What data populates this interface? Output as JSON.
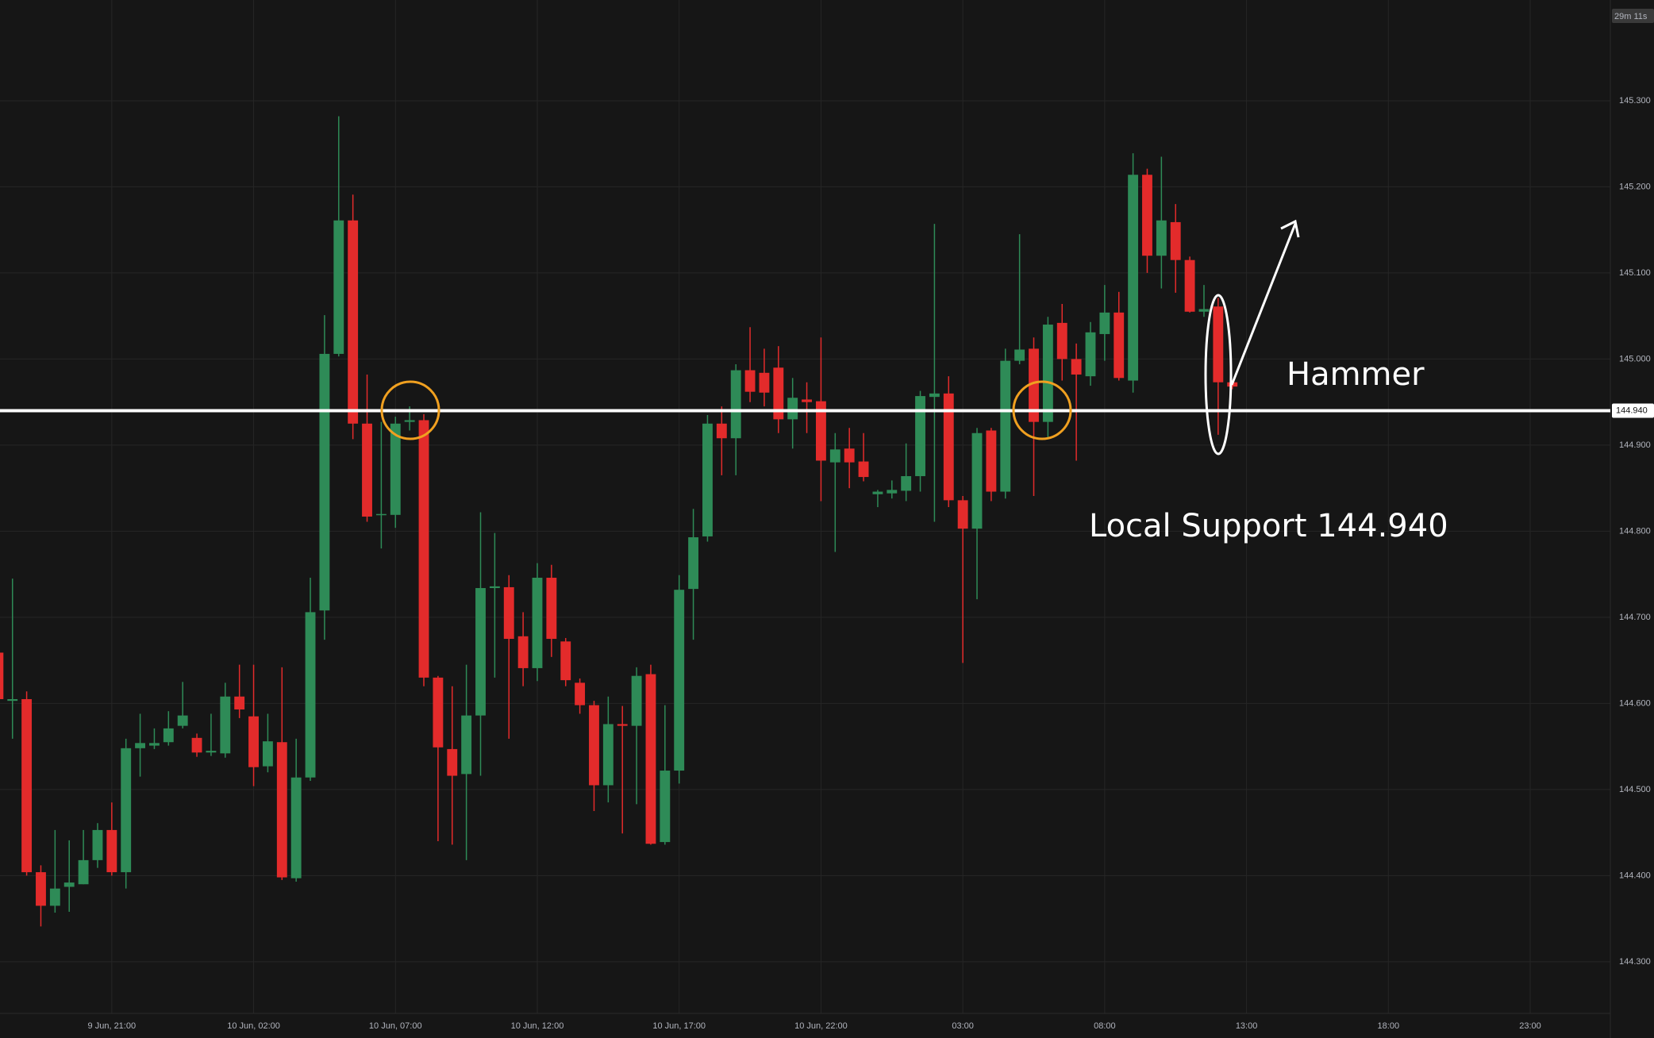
{
  "chart_data": {
    "type": "candlestick",
    "up_color": "#2e8b57",
    "down_color": "#e32b2b",
    "grid": true,
    "open": [
      144.659,
      144.603,
      144.605,
      144.404,
      144.365,
      144.387,
      144.39,
      144.418,
      144.453,
      144.404,
      144.548,
      144.551,
      144.555,
      144.574,
      144.56,
      144.543,
      144.542,
      144.608,
      144.585,
      144.527,
      144.555,
      144.397,
      144.514,
      144.708,
      145.006,
      145.161,
      144.925,
      144.819,
      144.819,
      144.927,
      144.929,
      144.63,
      144.547,
      144.518,
      144.586,
      144.734,
      144.735,
      144.678,
      144.641,
      144.746,
      144.672,
      144.624,
      144.598,
      144.505,
      144.576,
      144.574,
      144.634,
      144.439,
      144.522,
      144.733,
      144.794,
      144.925,
      144.908,
      144.987,
      144.984,
      144.99,
      144.93,
      144.953,
      144.951,
      144.88,
      144.896,
      144.881,
      144.843,
      144.844,
      144.847,
      144.864,
      144.956,
      144.96,
      144.836,
      144.803,
      144.917,
      144.846,
      144.998,
      145.012,
      144.927,
      145.042,
      145.0,
      144.98,
      145.029,
      145.054,
      144.975,
      145.214,
      145.12,
      145.159,
      145.115,
      145.055,
      145.061,
      144.973
    ],
    "high": [
      144.669,
      144.745,
      144.614,
      144.412,
      144.453,
      144.441,
      144.453,
      144.461,
      144.485,
      144.559,
      144.588,
      144.571,
      144.591,
      144.625,
      144.565,
      144.588,
      144.624,
      144.645,
      144.645,
      144.588,
      144.642,
      144.559,
      144.746,
      145.051,
      145.282,
      145.191,
      144.982,
      144.927,
      144.933,
      144.945,
      144.936,
      144.632,
      144.62,
      144.645,
      144.822,
      144.798,
      144.749,
      144.706,
      144.763,
      144.761,
      144.676,
      144.629,
      144.603,
      144.608,
      144.597,
      144.642,
      144.645,
      144.598,
      144.749,
      144.826,
      144.935,
      144.945,
      144.994,
      145.037,
      145.012,
      145.015,
      144.978,
      144.973,
      145.025,
      144.914,
      144.92,
      144.914,
      144.848,
      144.859,
      144.902,
      144.963,
      145.157,
      144.98,
      144.841,
      144.92,
      144.92,
      145.012,
      145.145,
      145.025,
      145.049,
      145.064,
      145.018,
      145.043,
      145.086,
      145.078,
      145.239,
      145.221,
      145.235,
      145.18,
      145.119,
      145.086,
      145.071,
      144.975
    ],
    "low": [
      144.596,
      144.559,
      144.4,
      144.341,
      144.357,
      144.358,
      144.39,
      144.409,
      144.4,
      144.385,
      144.515,
      144.547,
      144.551,
      144.571,
      144.538,
      144.539,
      144.537,
      144.583,
      144.504,
      144.52,
      144.395,
      144.393,
      144.51,
      144.674,
      145.003,
      144.907,
      144.811,
      144.78,
      144.804,
      144.917,
      144.62,
      144.44,
      144.436,
      144.418,
      144.516,
      144.63,
      144.559,
      144.62,
      144.626,
      144.654,
      144.62,
      144.588,
      144.475,
      144.485,
      144.449,
      144.483,
      144.436,
      144.436,
      144.507,
      144.674,
      144.788,
      144.865,
      144.865,
      144.95,
      144.945,
      144.914,
      144.896,
      144.914,
      144.835,
      144.776,
      144.85,
      144.858,
      144.828,
      144.838,
      144.835,
      144.846,
      144.811,
      144.828,
      144.647,
      144.721,
      144.835,
      144.838,
      144.994,
      144.841,
      144.909,
      144.975,
      144.882,
      144.969,
      144.998,
      144.975,
      144.961,
      145.1,
      145.082,
      145.077,
      145.054,
      145.049,
      144.912,
      144.965
    ],
    "close": [
      144.605,
      144.605,
      144.404,
      144.365,
      144.385,
      144.392,
      144.418,
      144.453,
      144.404,
      144.548,
      144.554,
      144.554,
      144.571,
      144.586,
      144.543,
      144.545,
      144.608,
      144.593,
      144.526,
      144.556,
      144.398,
      144.514,
      144.706,
      145.006,
      145.161,
      144.925,
      144.817,
      144.82,
      144.925,
      144.929,
      144.63,
      144.549,
      144.516,
      144.586,
      144.734,
      144.736,
      144.675,
      144.641,
      144.746,
      144.675,
      144.627,
      144.598,
      144.505,
      144.576,
      144.574,
      144.632,
      144.437,
      144.522,
      144.732,
      144.793,
      144.925,
      144.908,
      144.987,
      144.962,
      144.961,
      144.93,
      144.955,
      144.95,
      144.882,
      144.895,
      144.88,
      144.863,
      144.846,
      144.848,
      144.864,
      144.957,
      144.96,
      144.836,
      144.803,
      144.914,
      144.846,
      144.998,
      145.011,
      144.927,
      145.04,
      145.0,
      144.982,
      145.031,
      145.054,
      144.978,
      145.214,
      145.12,
      145.161,
      145.115,
      145.055,
      145.058,
      144.973,
      144.968
    ],
    "xlim": [
      0.12,
      113.65
    ],
    "xticks": [
      {
        "value": 8,
        "label": "9 Jun, 21:00"
      },
      {
        "value": 18,
        "label": "10 Jun, 02:00"
      },
      {
        "value": 28,
        "label": "10 Jun, 07:00"
      },
      {
        "value": 38,
        "label": "10 Jun, 12:00"
      },
      {
        "value": 48,
        "label": "10 Jun, 17:00"
      },
      {
        "value": 58,
        "label": "10 Jun, 22:00"
      },
      {
        "value": 68,
        "label": "03:00"
      },
      {
        "value": 78,
        "label": "08:00"
      },
      {
        "value": 88,
        "label": "13:00"
      },
      {
        "value": 98,
        "label": "18:00"
      },
      {
        "value": 108,
        "label": "23:00"
      }
    ],
    "ylim": [
      144.24,
      145.417
    ],
    "yticks": [
      {
        "value": 144.3,
        "label": "144.300"
      },
      {
        "value": 144.4,
        "label": "144.400"
      },
      {
        "value": 144.5,
        "label": "144.500"
      },
      {
        "value": 144.6,
        "label": "144.600"
      },
      {
        "value": 144.7,
        "label": "144.700"
      },
      {
        "value": 144.8,
        "label": "144.800"
      },
      {
        "value": 144.9,
        "label": "144.900"
      },
      {
        "value": 145.0,
        "label": "145.000"
      },
      {
        "value": 145.1,
        "label": "145.100"
      },
      {
        "value": 145.2,
        "label": "145.200"
      },
      {
        "value": 145.3,
        "label": "145.300"
      }
    ],
    "price_line": {
      "value": 144.94,
      "label": "144.940"
    },
    "countdown": "29m 11s",
    "annotations": [
      "Hammer",
      "Local Support 144.940"
    ]
  }
}
